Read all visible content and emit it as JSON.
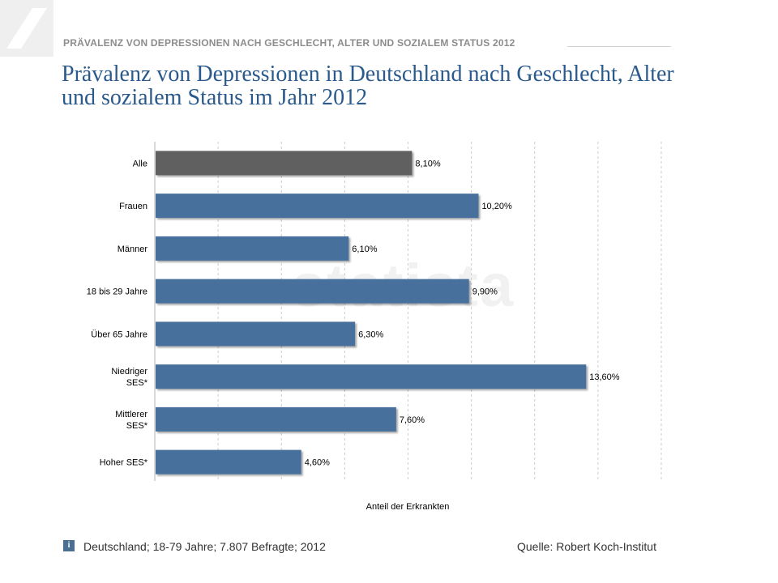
{
  "header": {
    "kicker": "PRÄVALENZ VON DEPRESSIONEN NACH GESCHLECHT, ALTER UND SOZIALEM STATUS 2012",
    "title": "Prävalenz von Depressionen in Deutschland nach Geschlecht, Alter und sozialem Status im Jahr 2012"
  },
  "watermark": "statista",
  "footer": {
    "info_icon": "info-icon",
    "note": "Deutschland; 18-79 Jahre; 7.807 Befragte; 2012",
    "source": "Quelle: Robert Koch-Institut"
  },
  "colors": {
    "highlight_bar": "#616161",
    "bar": "#46719c",
    "grid": "#cccccc",
    "title": "#2a5a8c"
  },
  "chart_data": {
    "type": "bar",
    "orientation": "horizontal",
    "title": "Prävalenz von Depressionen in Deutschland nach Geschlecht, Alter und sozialem Status im Jahr 2012",
    "xlabel": "Anteil der Erkrankten",
    "ylabel": "",
    "xlim": [
      0,
      16
    ],
    "grid": true,
    "grid_style": "dashed",
    "unit": "%",
    "categories": [
      "Alle",
      "Frauen",
      "Männer",
      "18 bis 29 Jahre",
      "Über 65 Jahre",
      "Niedriger SES*",
      "Mittlerer SES*",
      "Hoher SES*"
    ],
    "values": [
      8.1,
      10.2,
      6.1,
      9.9,
      6.3,
      13.6,
      7.6,
      4.6
    ],
    "value_labels": [
      "8,10%",
      "10,20%",
      "6,10%",
      "9,90%",
      "6,30%",
      "13,60%",
      "7,60%",
      "4,60%"
    ],
    "highlight_index": 0
  }
}
